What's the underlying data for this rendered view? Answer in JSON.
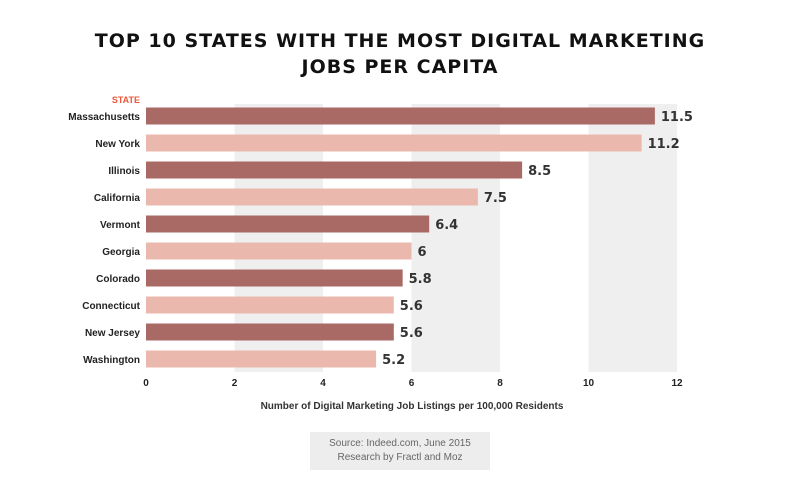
{
  "title": {
    "line1": "TOP 10 STATES WITH THE MOST DIGITAL MARKETING",
    "line2": "JOBS PER CAPITA"
  },
  "source": {
    "line1": "Source: Indeed.com, June 2015",
    "line2": "Research by Fractl and Moz"
  },
  "colors": {
    "dark_bar": "#a96a65",
    "light_bar": "#ebb8ad",
    "header_accent": "#e8573a",
    "band": "#efefef"
  },
  "chart_data": {
    "type": "bar",
    "orientation": "horizontal",
    "category_header": "STATE",
    "categories": [
      "Massachusetts",
      "New York",
      "Illinois",
      "California",
      "Vermont",
      "Georgia",
      "Colorado",
      "Connecticut",
      "New Jersey",
      "Washington"
    ],
    "values": [
      11.5,
      11.2,
      8.5,
      7.5,
      6.4,
      6,
      5.8,
      5.6,
      5.6,
      5.2
    ],
    "value_labels": [
      "11.5",
      "11.2",
      "8.5",
      "7.5",
      "6.4",
      "6",
      "5.8",
      "5.6",
      "5.6",
      "5.2"
    ],
    "xlabel": "Number of Digital Marketing Job Listings per 100,000 Residents",
    "xlim": [
      0,
      12
    ],
    "xticks": [
      "0",
      "2",
      "4",
      "6",
      "8",
      "10",
      "12"
    ],
    "grid": "alternating vertical bands",
    "bar_colors": "alternating dark and light"
  }
}
